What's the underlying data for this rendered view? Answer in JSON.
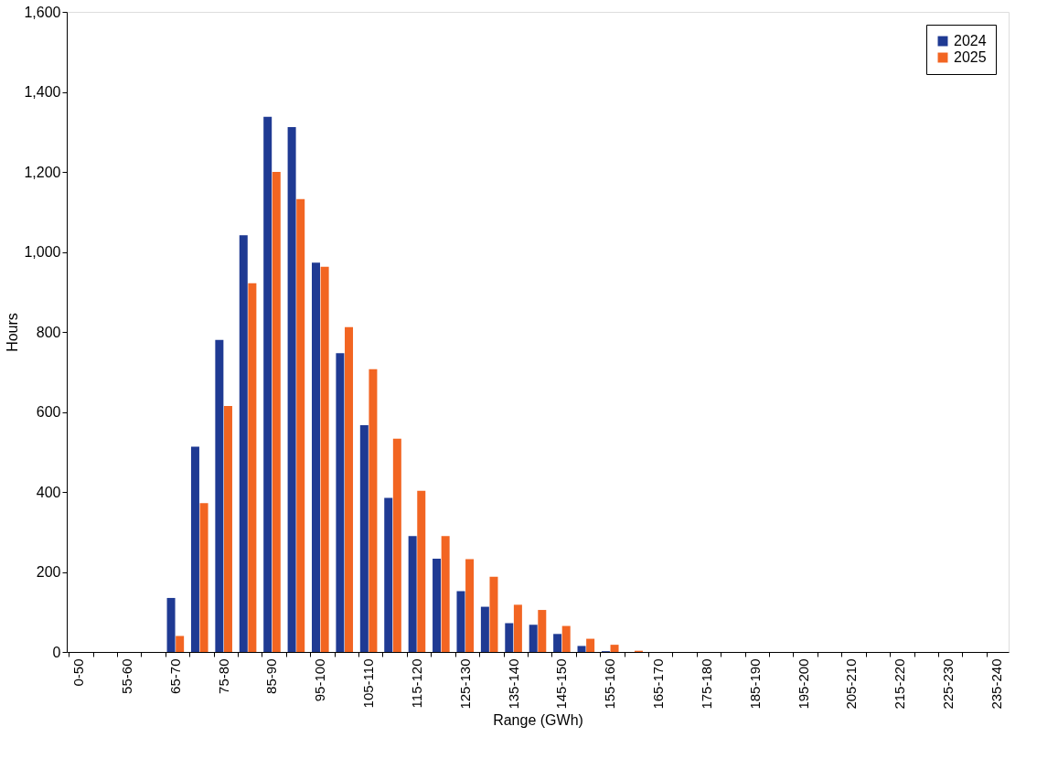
{
  "chart_data": {
    "type": "bar",
    "xlabel": "Range (GWh)",
    "ylabel": "Hours",
    "categories": [
      "0-50",
      null,
      "55-60",
      null,
      "65-70",
      null,
      "75-80",
      null,
      "85-90",
      null,
      "95-100",
      null,
      "105-110",
      null,
      "115-120",
      null,
      "125-130",
      null,
      "135-140",
      null,
      "145-150",
      null,
      "155-160",
      null,
      "165-170",
      null,
      "175-180",
      null,
      "185-190",
      null,
      "195-200",
      null,
      "205-210",
      null,
      "215-220",
      null,
      "225-230",
      null,
      "235-240"
    ],
    "series": [
      {
        "name": "2024",
        "color": "#1f3a93",
        "values": [
          0,
          0,
          0,
          0,
          135,
          513,
          780,
          1042,
          1338,
          1312,
          973,
          747,
          567,
          385,
          290,
          233,
          152,
          113,
          72,
          68,
          45,
          15,
          2,
          0,
          0,
          0,
          0,
          0,
          0,
          0,
          0,
          0,
          0,
          0,
          0,
          0,
          0,
          0,
          0
        ]
      },
      {
        "name": "2025",
        "color": "#f26522",
        "values": [
          0,
          0,
          0,
          0,
          40,
          372,
          615,
          922,
          1200,
          1132,
          963,
          812,
          707,
          533,
          403,
          290,
          232,
          188,
          118,
          105,
          65,
          33,
          18,
          3,
          0,
          0,
          0,
          0,
          0,
          0,
          0,
          0,
          0,
          0,
          0,
          0,
          0,
          0,
          0
        ]
      }
    ],
    "ylim": [
      0,
      1600
    ],
    "yticks": [
      0,
      200,
      400,
      600,
      800,
      {
        "value": 1000,
        "label": "1,000"
      },
      {
        "value": 1200,
        "label": "1,200"
      },
      {
        "value": 1400,
        "label": "1,400"
      },
      {
        "value": 1600,
        "label": "1,600"
      }
    ],
    "grid": false,
    "legend": "top right"
  }
}
